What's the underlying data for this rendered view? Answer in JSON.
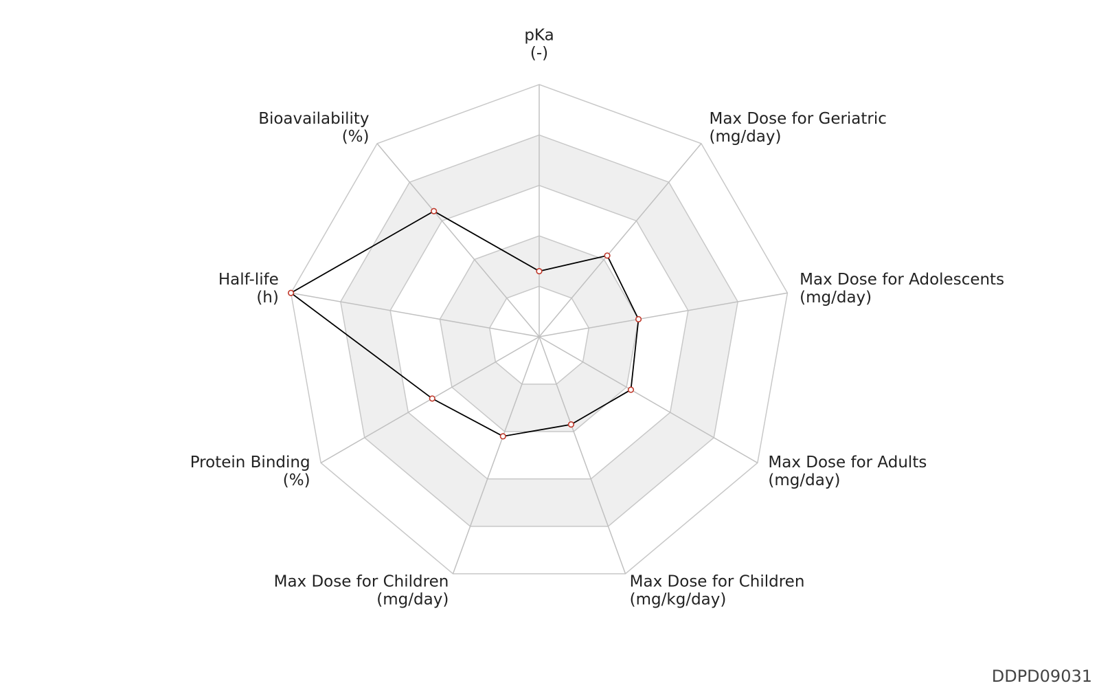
{
  "chart_data": {
    "type": "radar",
    "categories": [
      [
        "pKa",
        "(-)"
      ],
      [
        "Max Dose for Geriatric",
        "(mg/day)"
      ],
      [
        "Max Dose for Adolescents",
        "(mg/day)"
      ],
      [
        "Max Dose for Adults",
        "(mg/day)"
      ],
      [
        "Max Dose for Children",
        "(mg/kg/day)"
      ],
      [
        "Max Dose for Children",
        "(mg/day)"
      ],
      [
        "Protein Binding",
        "(%)"
      ],
      [
        "Half-life",
        "(h)"
      ],
      [
        "Bioavailability",
        "(%)"
      ]
    ],
    "values": [
      0.26,
      0.42,
      0.4,
      0.42,
      0.37,
      0.42,
      0.49,
      1.0,
      0.65
    ],
    "color": "#000000",
    "marker_color": "#c0392b",
    "rlim": [
      0,
      1
    ],
    "rticks": [
      0.2,
      0.4,
      0.6,
      0.8,
      1.0
    ],
    "grid": true,
    "footer": "DDPD09031"
  }
}
